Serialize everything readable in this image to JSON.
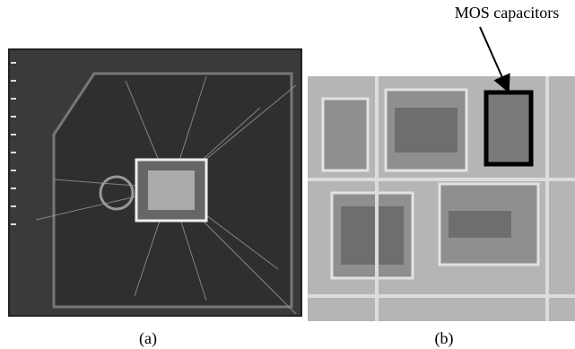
{
  "annotation": "MOS capacitors",
  "panels": [
    {
      "label": "(a)"
    },
    {
      "label": "(b)"
    }
  ]
}
